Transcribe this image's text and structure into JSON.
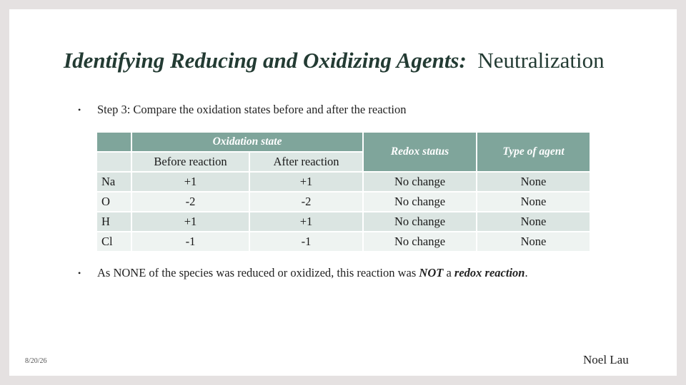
{
  "title": {
    "emphasis": "Identifying Reducing and Oxidizing Agents:",
    "rest": "Neutralization"
  },
  "bullets": {
    "step3": "Step 3: Compare the oxidation states before and after the reaction",
    "conclusion": {
      "part1": "As NONE of the species was reduced or oxidized, this reaction was ",
      "not": "NOT",
      "part2": " a ",
      "redox": "redox reaction",
      "part3": "."
    }
  },
  "table": {
    "header_group": "Oxidation state",
    "header_before": "Before reaction",
    "header_after": "After reaction",
    "header_redox": "Redox status",
    "header_agent": "Type of agent",
    "rows": [
      {
        "element": "Na",
        "before": "+1",
        "after": "+1",
        "redox": "No change",
        "agent": "None"
      },
      {
        "element": "O",
        "before": "-2",
        "after": "-2",
        "redox": "No change",
        "agent": "None"
      },
      {
        "element": "H",
        "before": "+1",
        "after": "+1",
        "redox": "No change",
        "agent": "None"
      },
      {
        "element": "Cl",
        "before": "-1",
        "after": "-1",
        "redox": "No change",
        "agent": "None"
      }
    ]
  },
  "footer": {
    "date": "8/20/26",
    "author": "Noel Lau"
  }
}
